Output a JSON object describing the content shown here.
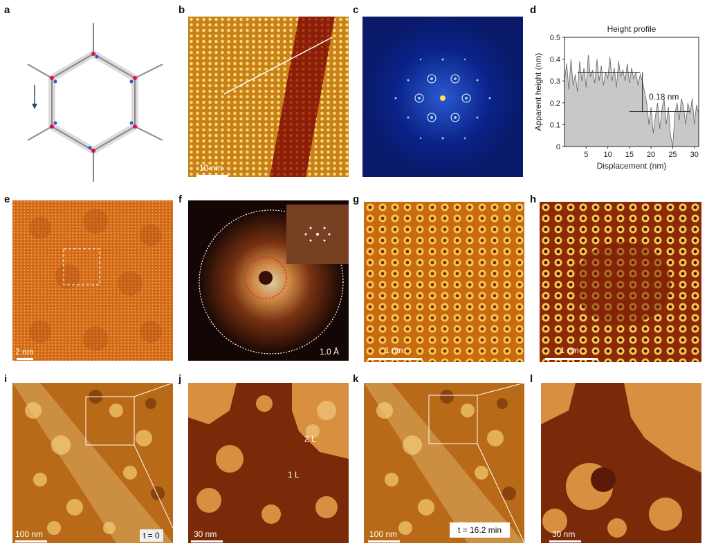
{
  "panels": {
    "a": "a",
    "b": "b",
    "c": "c",
    "d": "d",
    "e": "e",
    "f": "f",
    "g": "g",
    "h": "h",
    "i": "i",
    "j": "j",
    "k": "k",
    "l": "l"
  },
  "scalebars": {
    "b": "10 nm",
    "e": "2 nm",
    "g": "1 nm",
    "h": "1 nm",
    "i": "100 nm",
    "j": "30 nm",
    "k": "100 nm",
    "l": "30 nm"
  },
  "annotations": {
    "f_resolution": "1.0 Å",
    "i_time": "t = 0",
    "k_time": "t = 16.2 min",
    "j_layer2": "2 L",
    "j_layer1": "1 L"
  },
  "colors": {
    "stm_light": "#f0c060",
    "stm_mid": "#c87820",
    "stm_dark": "#7a2a0a",
    "fft_bg": "#0a1a6a",
    "profile_fill": "#c8c8c8"
  },
  "chart_data": {
    "type": "area",
    "title": "Height profile",
    "xlabel": "Displacement (nm)",
    "ylabel": "Apparent height (nm)",
    "xlim": [
      0,
      31
    ],
    "ylim": [
      0,
      0.5
    ],
    "xticks": [
      5,
      10,
      15,
      20,
      25,
      30
    ],
    "yticks": [
      0,
      0.1,
      0.2,
      0.3,
      0.4,
      0.5
    ],
    "annotation": "0.18 nm",
    "upper_level": 0.34,
    "lower_level": 0.16,
    "x": [
      0,
      0.5,
      1,
      1.5,
      2,
      2.5,
      3,
      3.5,
      4,
      4.5,
      5,
      5.5,
      6,
      6.5,
      7,
      7.5,
      8,
      8.5,
      9,
      9.5,
      10,
      10.5,
      11,
      11.5,
      12,
      12.5,
      13,
      13.5,
      14,
      14.5,
      15,
      15.5,
      16,
      16.5,
      17,
      17.5,
      18,
      18.5,
      19,
      19.5,
      20,
      20.5,
      21,
      21.5,
      22,
      22.5,
      23,
      23.5,
      24,
      24.5,
      25,
      25.5,
      26,
      26.5,
      27,
      27.5,
      28,
      28.5,
      29,
      29.5,
      30,
      30.5,
      31
    ],
    "y": [
      0.3,
      0.38,
      0.26,
      0.4,
      0.28,
      0.33,
      0.25,
      0.39,
      0.3,
      0.36,
      0.27,
      0.42,
      0.32,
      0.35,
      0.29,
      0.4,
      0.3,
      0.37,
      0.28,
      0.34,
      0.31,
      0.41,
      0.3,
      0.36,
      0.27,
      0.39,
      0.32,
      0.35,
      0.3,
      0.38,
      0.29,
      0.36,
      0.31,
      0.34,
      0.28,
      0.33,
      0.3,
      0.25,
      0.2,
      0.1,
      0.18,
      0.06,
      0.14,
      0.2,
      0.08,
      0.17,
      0.22,
      0.1,
      0.18,
      0.05,
      0.0,
      0.15,
      0.2,
      0.12,
      0.22,
      0.18,
      0.1,
      0.2,
      0.15,
      0.22,
      0.1,
      0.19,
      0.15
    ]
  }
}
